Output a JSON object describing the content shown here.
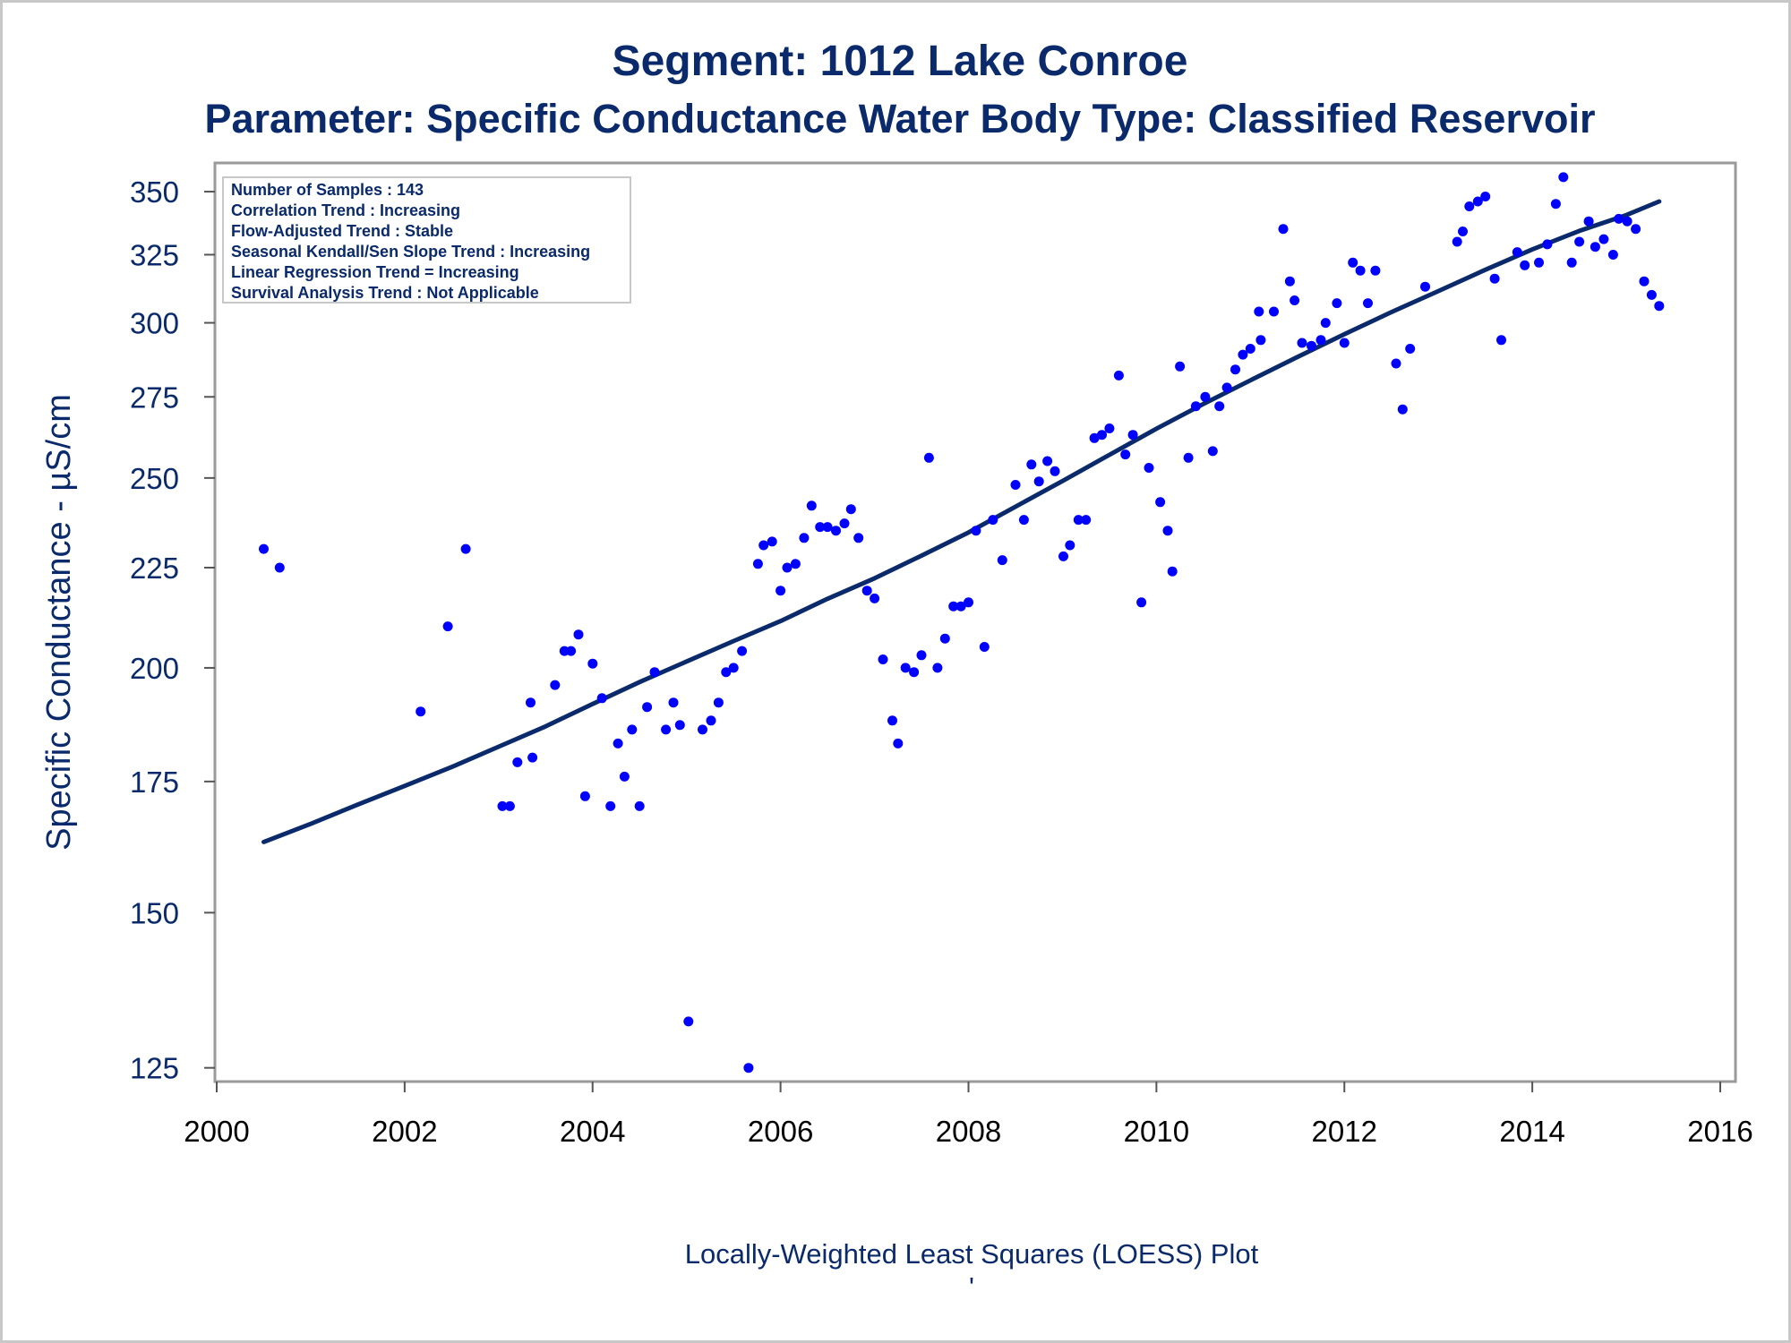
{
  "chart_data": {
    "type": "scatter",
    "title": "Segment: 1012  Lake Conroe",
    "subtitle": "Parameter: Specific Conductance   Water Body Type: Classified Reservoir",
    "xlabel": "",
    "ylabel": "Specific Conductance -  µS/cm",
    "footer": "Locally-Weighted Least Squares (LOESS) Plot",
    "footer_mark": "'",
    "xlim": [
      2000,
      2016
    ],
    "ylim": [
      123,
      362
    ],
    "yscale": "log",
    "x_ticks": [
      "2000",
      "2002",
      "2004",
      "2006",
      "2008",
      "2010",
      "2012",
      "2014",
      "2016"
    ],
    "y_ticks": [
      "125",
      "150",
      "175",
      "200",
      "225",
      "250",
      "275",
      "300",
      "325",
      "350"
    ],
    "grid": false,
    "legend_position": "top-left",
    "stats_box": [
      "Number of Samples : 143",
      "Correlation Trend : Increasing",
      "Flow-Adjusted Trend : Stable",
      "Seasonal Kendall/Sen Slope Trend : Increasing",
      "Linear Regression Trend = Increasing",
      "Survival Analysis Trend : Not Applicable"
    ],
    "series": [
      {
        "kind": "points",
        "color": "#0000ff",
        "points": [
          [
            2000.5,
            230
          ],
          [
            2000.67,
            225
          ],
          [
            2002.17,
            190
          ],
          [
            2002.46,
            210
          ],
          [
            2002.65,
            230
          ],
          [
            2003.04,
            170
          ],
          [
            2003.12,
            170
          ],
          [
            2003.2,
            179
          ],
          [
            2003.34,
            192
          ],
          [
            2003.36,
            180
          ],
          [
            2003.6,
            196
          ],
          [
            2003.7,
            204
          ],
          [
            2003.77,
            204
          ],
          [
            2003.85,
            208
          ],
          [
            2003.92,
            172
          ],
          [
            2004.0,
            201
          ],
          [
            2004.1,
            193
          ],
          [
            2004.19,
            170
          ],
          [
            2004.27,
            183
          ],
          [
            2004.34,
            176
          ],
          [
            2004.42,
            186
          ],
          [
            2004.5,
            170
          ],
          [
            2004.58,
            191
          ],
          [
            2004.66,
            199
          ],
          [
            2004.78,
            186
          ],
          [
            2004.86,
            192
          ],
          [
            2004.93,
            187
          ],
          [
            2005.02,
            132
          ],
          [
            2005.17,
            186
          ],
          [
            2005.26,
            188
          ],
          [
            2005.34,
            192
          ],
          [
            2005.42,
            199
          ],
          [
            2005.5,
            200
          ],
          [
            2005.59,
            204
          ],
          [
            2005.66,
            125
          ],
          [
            2005.76,
            226
          ],
          [
            2005.82,
            231
          ],
          [
            2005.91,
            232
          ],
          [
            2006.0,
            219
          ],
          [
            2006.07,
            225
          ],
          [
            2006.16,
            226
          ],
          [
            2006.25,
            233
          ],
          [
            2006.33,
            242
          ],
          [
            2006.42,
            236
          ],
          [
            2006.5,
            236
          ],
          [
            2006.59,
            235
          ],
          [
            2006.68,
            237
          ],
          [
            2006.75,
            241
          ],
          [
            2006.83,
            233
          ],
          [
            2006.92,
            219
          ],
          [
            2007.0,
            217
          ],
          [
            2007.09,
            202
          ],
          [
            2007.19,
            188
          ],
          [
            2007.25,
            183
          ],
          [
            2007.33,
            200
          ],
          [
            2007.42,
            199
          ],
          [
            2007.5,
            203
          ],
          [
            2007.58,
            256
          ],
          [
            2007.67,
            200
          ],
          [
            2007.75,
            207
          ],
          [
            2007.84,
            215
          ],
          [
            2007.92,
            215
          ],
          [
            2008.0,
            216
          ],
          [
            2008.08,
            235
          ],
          [
            2008.17,
            205
          ],
          [
            2008.26,
            238
          ],
          [
            2008.36,
            227
          ],
          [
            2008.5,
            248
          ],
          [
            2008.59,
            238
          ],
          [
            2008.67,
            254
          ],
          [
            2008.75,
            249
          ],
          [
            2008.84,
            255
          ],
          [
            2008.92,
            252
          ],
          [
            2009.01,
            228
          ],
          [
            2009.08,
            231
          ],
          [
            2009.17,
            238
          ],
          [
            2009.25,
            238
          ],
          [
            2009.34,
            262
          ],
          [
            2009.42,
            263
          ],
          [
            2009.5,
            265
          ],
          [
            2009.6,
            282
          ],
          [
            2009.67,
            257
          ],
          [
            2009.75,
            263
          ],
          [
            2009.84,
            216
          ],
          [
            2009.92,
            253
          ],
          [
            2010.04,
            243
          ],
          [
            2010.12,
            235
          ],
          [
            2010.17,
            224
          ],
          [
            2010.25,
            285
          ],
          [
            2010.34,
            256
          ],
          [
            2010.42,
            272
          ],
          [
            2010.52,
            275
          ],
          [
            2010.6,
            258
          ],
          [
            2010.67,
            272
          ],
          [
            2010.75,
            278
          ],
          [
            2010.84,
            284
          ],
          [
            2010.92,
            289
          ],
          [
            2011.0,
            291
          ],
          [
            2011.09,
            304
          ],
          [
            2011.11,
            294
          ],
          [
            2011.25,
            304
          ],
          [
            2011.35,
            335
          ],
          [
            2011.42,
            315
          ],
          [
            2011.47,
            308
          ],
          [
            2011.55,
            293
          ],
          [
            2011.65,
            292
          ],
          [
            2011.75,
            294
          ],
          [
            2011.8,
            300
          ],
          [
            2011.92,
            307
          ],
          [
            2012.0,
            293
          ],
          [
            2012.09,
            322
          ],
          [
            2012.17,
            319
          ],
          [
            2012.25,
            307
          ],
          [
            2012.33,
            319
          ],
          [
            2012.55,
            286
          ],
          [
            2012.62,
            271
          ],
          [
            2012.7,
            291
          ],
          [
            2012.86,
            313
          ],
          [
            2013.2,
            330
          ],
          [
            2013.26,
            334
          ],
          [
            2013.33,
            344
          ],
          [
            2013.42,
            346
          ],
          [
            2013.5,
            348
          ],
          [
            2013.6,
            316
          ],
          [
            2013.67,
            294
          ],
          [
            2013.84,
            326
          ],
          [
            2013.92,
            321
          ],
          [
            2014.07,
            322
          ],
          [
            2014.16,
            329
          ],
          [
            2014.25,
            345
          ],
          [
            2014.33,
            356
          ],
          [
            2014.42,
            322
          ],
          [
            2014.5,
            330
          ],
          [
            2014.6,
            338
          ],
          [
            2014.67,
            328
          ],
          [
            2014.76,
            331
          ],
          [
            2014.86,
            325
          ],
          [
            2014.92,
            339
          ],
          [
            2015.01,
            338
          ],
          [
            2015.1,
            335
          ],
          [
            2015.19,
            315
          ],
          [
            2015.27,
            310
          ],
          [
            2015.35,
            306
          ]
        ]
      },
      {
        "kind": "loess-line",
        "color": "#0a2a6b",
        "points": [
          [
            2000.5,
            163
          ],
          [
            2001.0,
            166.5
          ],
          [
            2001.5,
            170.3
          ],
          [
            2002.0,
            174.1
          ],
          [
            2002.5,
            178.0
          ],
          [
            2003.0,
            182.3
          ],
          [
            2003.5,
            186.7
          ],
          [
            2004.0,
            191.7
          ],
          [
            2004.5,
            196.7
          ],
          [
            2005.0,
            201.5
          ],
          [
            2005.5,
            206.4
          ],
          [
            2006.0,
            211.3
          ],
          [
            2006.5,
            216.9
          ],
          [
            2007.0,
            222.2
          ],
          [
            2007.5,
            228.2
          ],
          [
            2008.0,
            234.5
          ],
          [
            2008.5,
            241.7
          ],
          [
            2009.0,
            249.1
          ],
          [
            2009.5,
            256.9
          ],
          [
            2010.0,
            264.9
          ],
          [
            2010.5,
            272.7
          ],
          [
            2011.0,
            280.4
          ],
          [
            2011.5,
            288.2
          ],
          [
            2012.0,
            296.0
          ],
          [
            2012.5,
            303.8
          ],
          [
            2013.0,
            311.4
          ],
          [
            2013.5,
            319.3
          ],
          [
            2014.0,
            327.0
          ],
          [
            2014.5,
            334.2
          ],
          [
            2015.0,
            340.5
          ],
          [
            2015.35,
            346
          ]
        ]
      }
    ]
  }
}
